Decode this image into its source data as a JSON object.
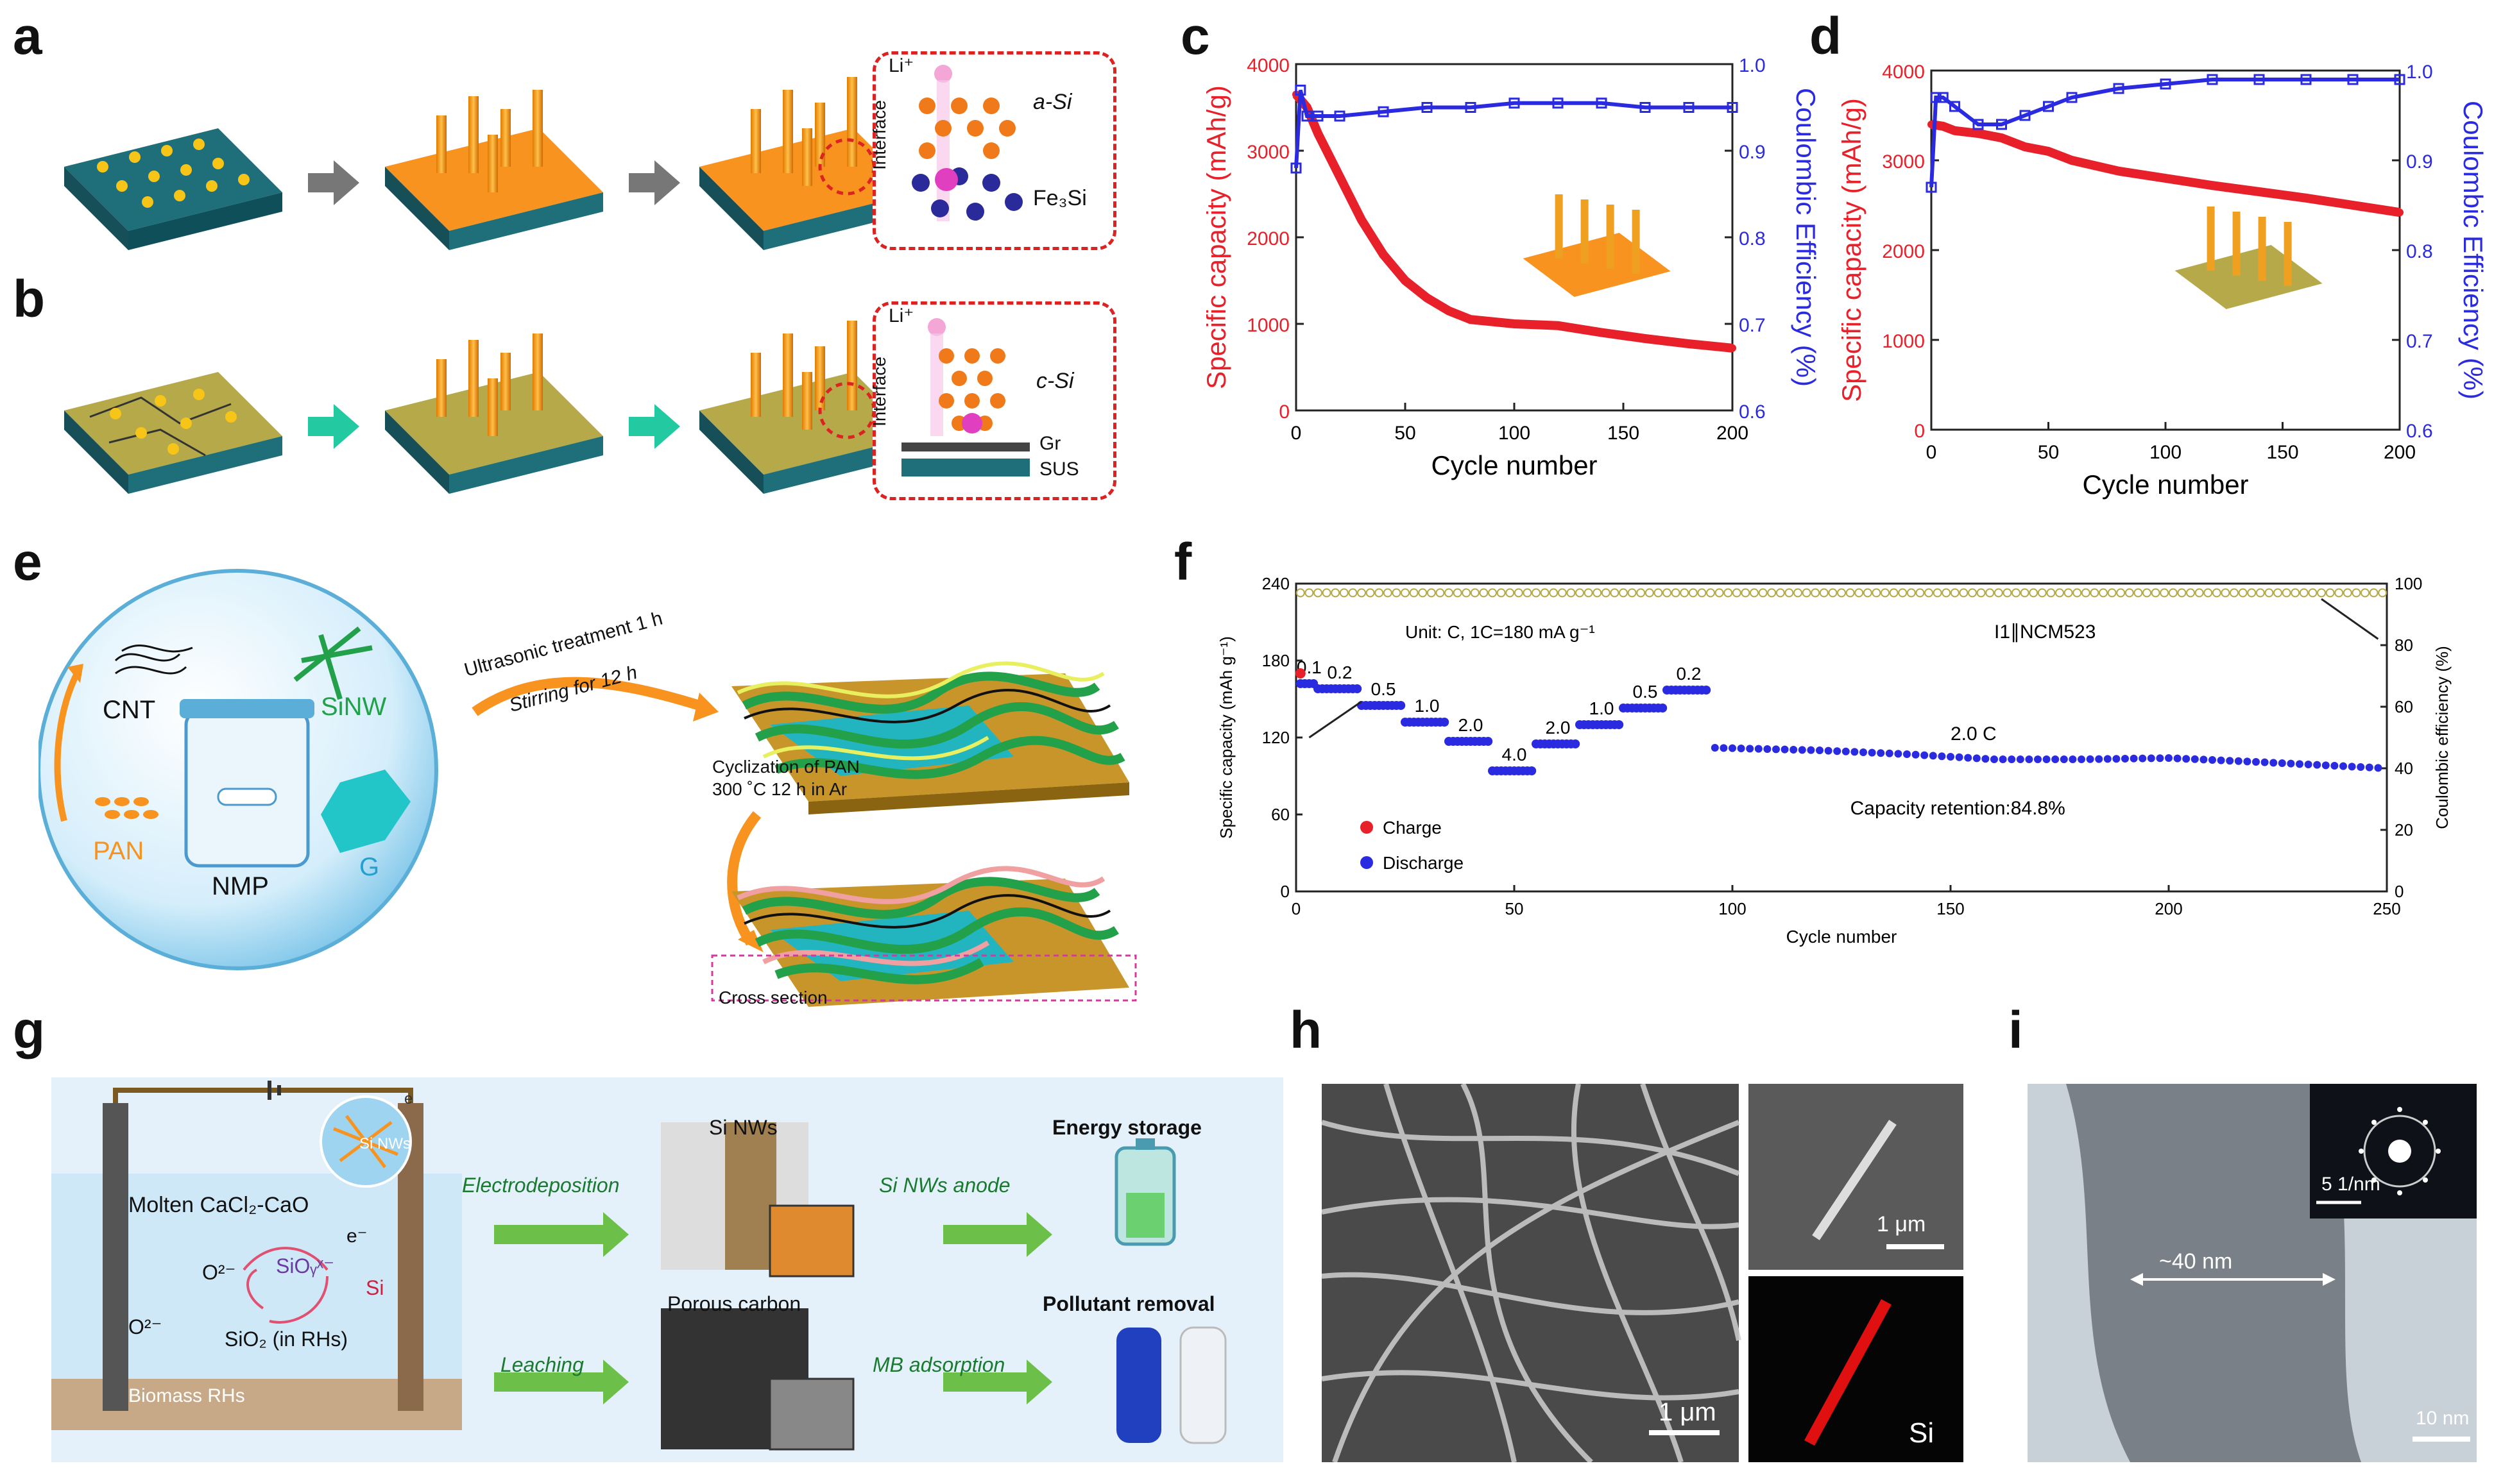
{
  "panels": {
    "a": "a",
    "b": "b",
    "c": "c",
    "d": "d",
    "e": "e",
    "f": "f",
    "g": "g",
    "h": "h",
    "i": "i"
  },
  "inset_a": {
    "li": "Li⁺",
    "interface": "Interface",
    "top": "a-Si",
    "bottom": "Fe₃Si"
  },
  "inset_b": {
    "li": "Li⁺",
    "interface": "Interface",
    "top": "c-Si",
    "mid": "Gr",
    "bottom": "SUS"
  },
  "colors": {
    "red": "#e8202a",
    "blue": "#2a2ae0",
    "orange": "#f7931e",
    "teal": "#1f6f7a",
    "olive": "#b5a94a"
  },
  "chart_data": [
    {
      "id": "c",
      "type": "line",
      "xlabel": "Cycle number",
      "ylabel": "Specific capacity (mAh/g)",
      "y2label": "Coulombic Efficiency (%)",
      "xlim": [
        0,
        200
      ],
      "ylim": [
        0,
        4000
      ],
      "y2lim": [
        0.6,
        1.0
      ],
      "xticks": [
        "0",
        "50",
        "100",
        "150",
        "200"
      ],
      "yticks": [
        "0",
        "1000",
        "2000",
        "3000",
        "4000"
      ],
      "y2ticks": [
        "0.6",
        "0.7",
        "0.8",
        "0.9",
        "1.0"
      ],
      "series": [
        {
          "name": "capacity",
          "axis": "left",
          "x": [
            0,
            5,
            10,
            20,
            30,
            40,
            50,
            60,
            70,
            80,
            100,
            120,
            140,
            160,
            180,
            200
          ],
          "y": [
            3650,
            3500,
            3200,
            2700,
            2200,
            1800,
            1500,
            1300,
            1150,
            1050,
            1000,
            980,
            900,
            830,
            770,
            720
          ]
        },
        {
          "name": "efficiency",
          "axis": "right",
          "x": [
            0,
            2,
            5,
            10,
            20,
            40,
            60,
            80,
            100,
            120,
            140,
            160,
            180,
            200
          ],
          "y": [
            0.88,
            0.97,
            0.94,
            0.94,
            0.94,
            0.945,
            0.95,
            0.95,
            0.955,
            0.955,
            0.955,
            0.95,
            0.95,
            0.95
          ]
        }
      ]
    },
    {
      "id": "d",
      "type": "line",
      "xlabel": "Cycle number",
      "ylabel": "Specific capacity (mAh/g)",
      "y2label": "Coulombic Efficiency (%)",
      "xlim": [
        0,
        200
      ],
      "ylim": [
        0,
        4000
      ],
      "y2lim": [
        0.6,
        1.0
      ],
      "xticks": [
        "0",
        "50",
        "100",
        "150",
        "200"
      ],
      "yticks": [
        "0",
        "1000",
        "2000",
        "3000",
        "4000"
      ],
      "y2ticks": [
        "0.6",
        "0.7",
        "0.8",
        "0.9",
        "1.0"
      ],
      "series": [
        {
          "name": "capacity",
          "axis": "left",
          "x": [
            0,
            5,
            10,
            20,
            30,
            40,
            50,
            60,
            80,
            100,
            120,
            140,
            160,
            180,
            200
          ],
          "y": [
            3400,
            3380,
            3330,
            3300,
            3250,
            3150,
            3100,
            3000,
            2880,
            2800,
            2720,
            2650,
            2580,
            2500,
            2420
          ]
        },
        {
          "name": "efficiency",
          "axis": "right",
          "x": [
            0,
            2,
            5,
            10,
            20,
            30,
            40,
            50,
            60,
            80,
            100,
            120,
            140,
            160,
            180,
            200
          ],
          "y": [
            0.87,
            0.97,
            0.97,
            0.96,
            0.94,
            0.94,
            0.95,
            0.96,
            0.97,
            0.98,
            0.985,
            0.99,
            0.99,
            0.99,
            0.99,
            0.99
          ]
        }
      ]
    },
    {
      "id": "f",
      "type": "scatter",
      "xlabel": "Cycle number",
      "ylabel": "Specific capacity (mAh g⁻¹)",
      "y2label": "Coulombic efficiency (%)",
      "xlim": [
        0,
        250
      ],
      "ylim": [
        0,
        240
      ],
      "y2lim": [
        0,
        100
      ],
      "xticks": [
        "0",
        "50",
        "100",
        "150",
        "200",
        "250"
      ],
      "yticks": [
        "0",
        "60",
        "120",
        "180",
        "240"
      ],
      "y2ticks": [
        "0",
        "20",
        "40",
        "60",
        "80",
        "100"
      ],
      "legend": {
        "charge": "Charge",
        "discharge": "Discharge"
      },
      "annotations": {
        "unit": "Unit: C, 1C=180 mA g⁻¹",
        "cell": "I1∥NCM523",
        "rate": "2.0 C",
        "retention": "Capacity retention:84.8%"
      },
      "steps": [
        {
          "rate": "0.1",
          "x0": 1,
          "x1": 5,
          "y": 162
        },
        {
          "rate": "0.2",
          "x0": 5,
          "x1": 15,
          "y": 158
        },
        {
          "rate": "0.5",
          "x0": 15,
          "x1": 25,
          "y": 145
        },
        {
          "rate": "1.0",
          "x0": 25,
          "x1": 35,
          "y": 132
        },
        {
          "rate": "2.0",
          "x0": 35,
          "x1": 45,
          "y": 117
        },
        {
          "rate": "4.0",
          "x0": 45,
          "x1": 55,
          "y": 94
        },
        {
          "rate": "2.0",
          "x0": 55,
          "x1": 65,
          "y": 115
        },
        {
          "rate": "1.0",
          "x0": 65,
          "x1": 75,
          "y": 130
        },
        {
          "rate": "0.5",
          "x0": 75,
          "x1": 85,
          "y": 143
        },
        {
          "rate": "0.2",
          "x0": 85,
          "x1": 95,
          "y": 157
        }
      ],
      "long": {
        "x": [
          96,
          120,
          140,
          160,
          180,
          200,
          220,
          250
        ],
        "y": [
          112,
          110,
          107,
          103,
          103,
          104,
          101,
          96
        ]
      },
      "efficiency": 97
    }
  ],
  "panel_e": {
    "cnt": "CNT",
    "sinw": "SiNW",
    "pan": "PAN",
    "g": "G",
    "nmp": "NMP",
    "step1a": "Ultrasonic treatment 1 h",
    "step1b": "Stirring for 12 h",
    "step2a": "Cyclization of PAN",
    "step2b": "300 ˚C  12 h in Ar",
    "cross": "Cross section"
  },
  "panel_g": {
    "molten": "Molten CaCl₂-CaO",
    "sinws": "Si NWs",
    "o2": "O²⁻",
    "o2b": "O²⁻",
    "sioy": "SiOᵧˣ⁻",
    "si": "Si",
    "sio2": "SiO₂ (in RHs)",
    "e": "e⁻",
    "ebox": "e",
    "rh": "Biomass RHs",
    "electro": "Electrodeposition",
    "leach": "Leaching",
    "sinwtitle": "Si NWs",
    "porous": "Porous carbon",
    "anode": "Si NWs anode",
    "mb": "MB adsorption",
    "energy": "Energy storage",
    "pollutant": "Pollutant removal"
  },
  "panel_h": {
    "scale1": "1 μm",
    "scale2": "1 μm",
    "si": "Si"
  },
  "panel_i": {
    "width": "~40 nm",
    "scale1": "5 1/nm",
    "scale2": "10 nm"
  }
}
